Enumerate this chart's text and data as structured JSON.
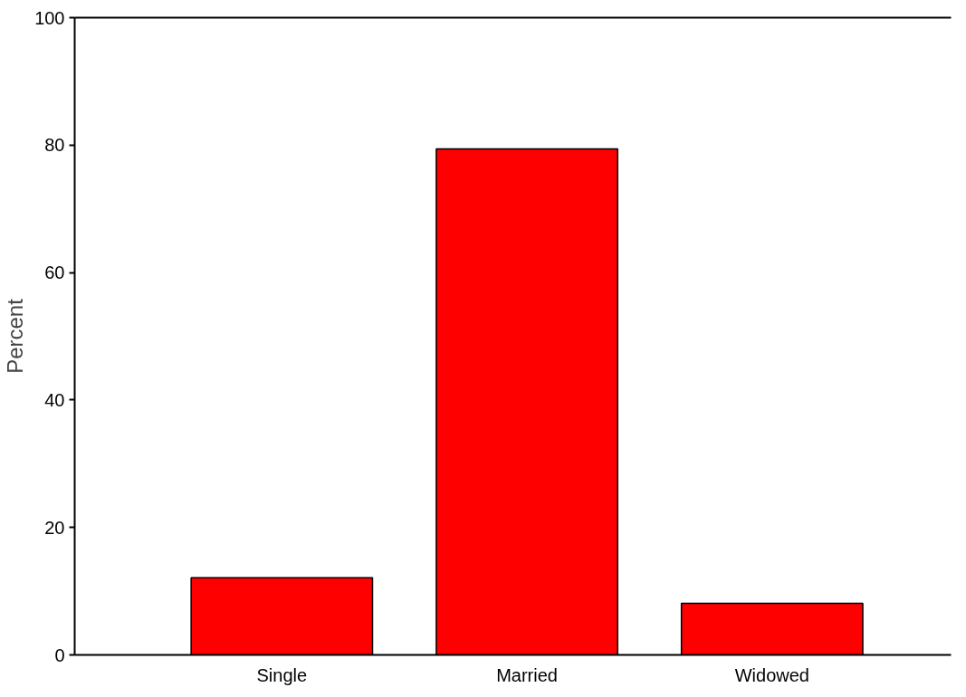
{
  "chart_data": {
    "type": "bar",
    "ylabel": "Percent",
    "categories": [
      "Single",
      "Married",
      "Widowed"
    ],
    "values": [
      12.1,
      79.4,
      8.1
    ],
    "color": "#ff0000",
    "ylim": [
      0,
      100
    ],
    "yticks": [
      0,
      20,
      40,
      60,
      80,
      100
    ],
    "grid": false
  }
}
